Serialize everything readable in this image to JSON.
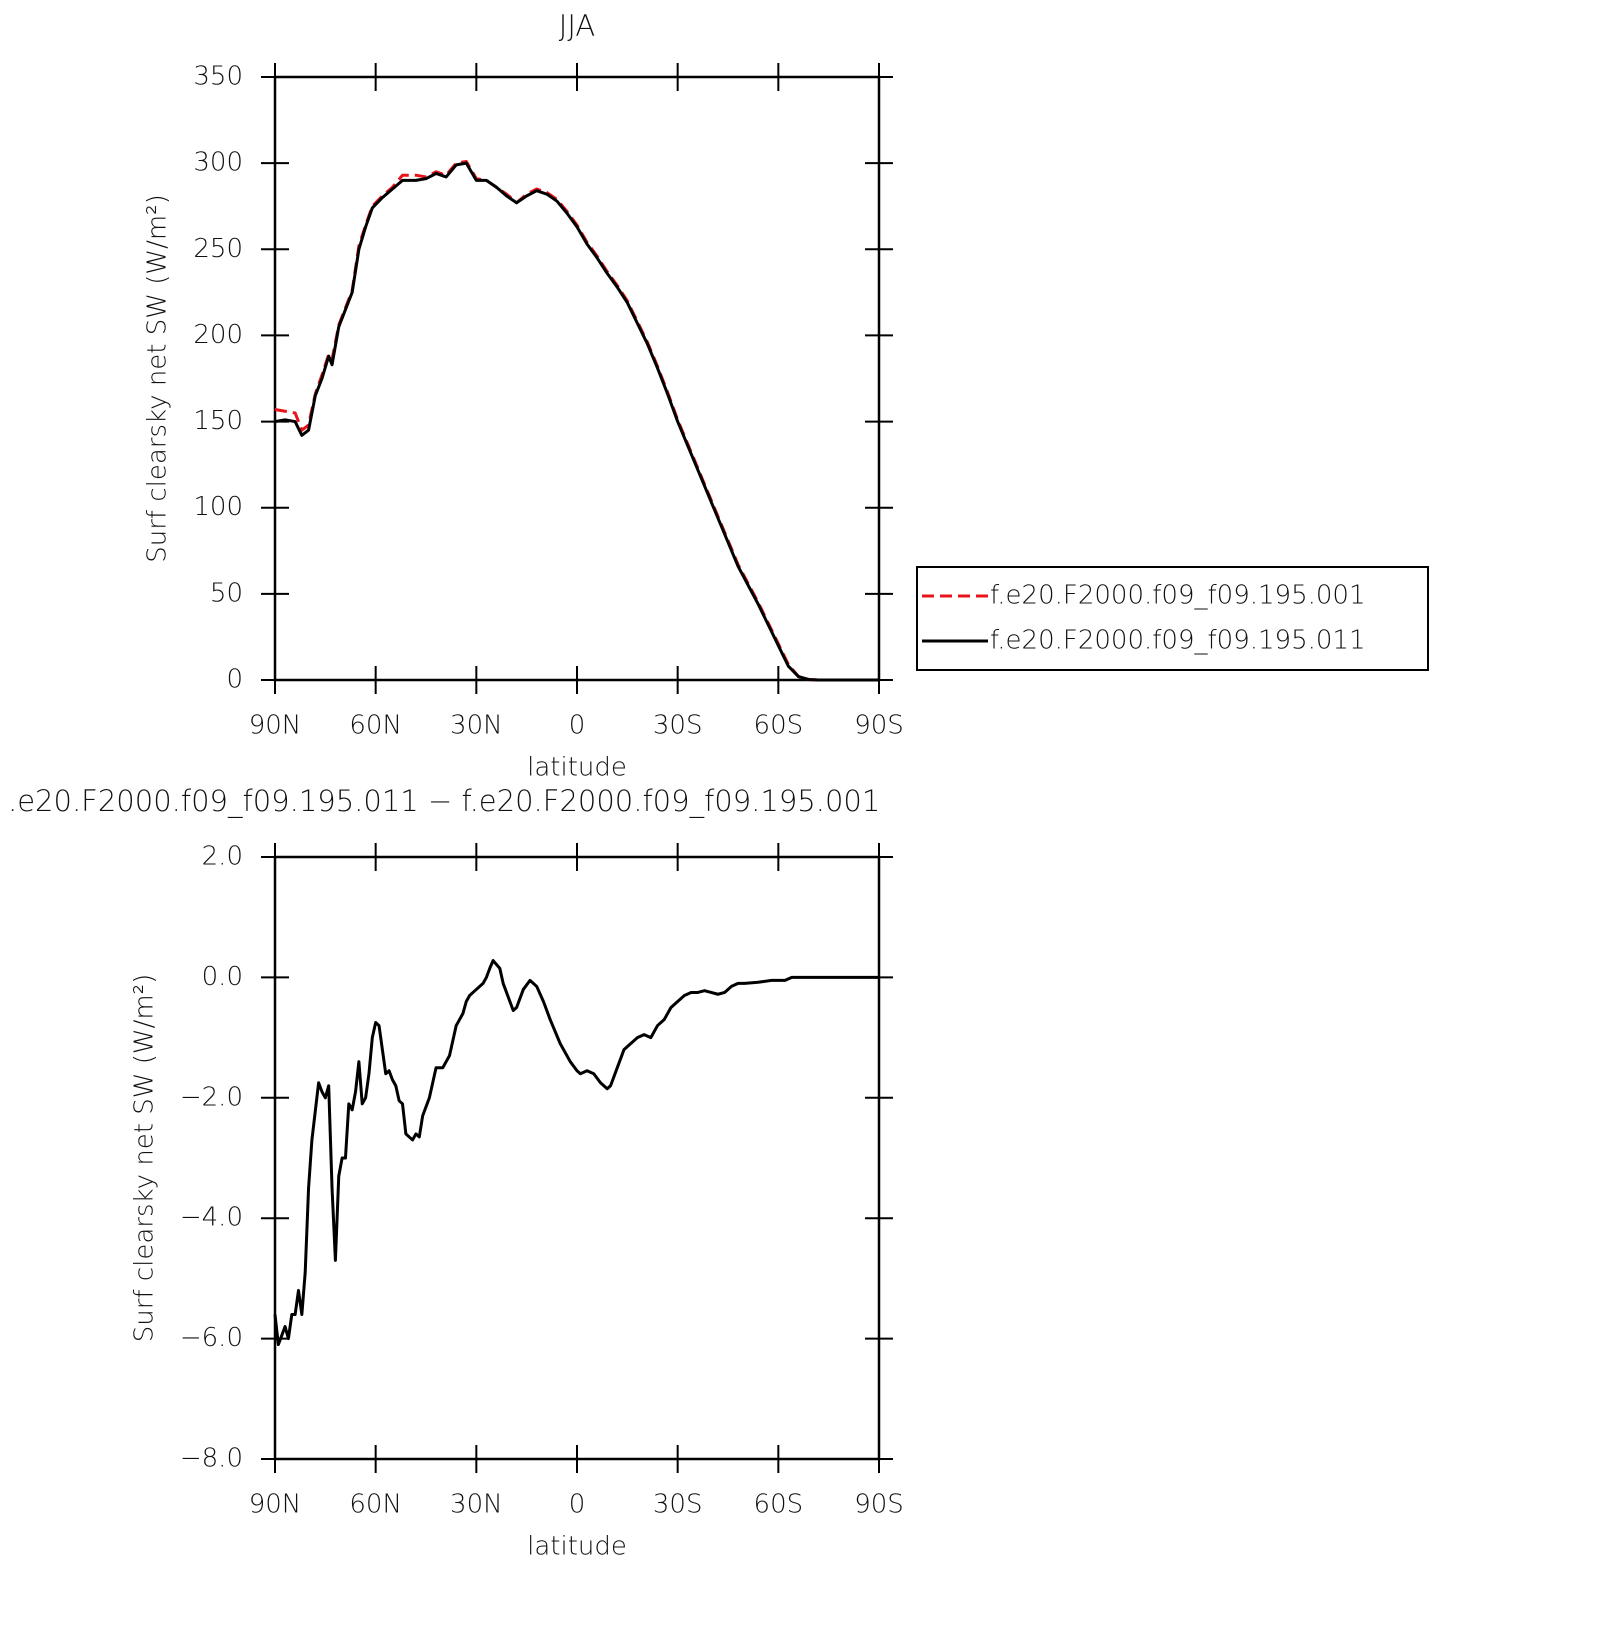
{
  "chart_data": [
    {
      "type": "line",
      "title": "JJA",
      "xlabel": "latitude",
      "ylabel": "Surf clearsky net SW (W/m²)",
      "xlim": [
        90,
        -90
      ],
      "xticks": [
        {
          "value": 90,
          "label": "90N"
        },
        {
          "value": 60,
          "label": "60N"
        },
        {
          "value": 30,
          "label": "30N"
        },
        0,
        {
          "value": -30,
          "label": "30S"
        },
        {
          "value": -60,
          "label": "60S"
        },
        {
          "value": -90,
          "label": "90S"
        }
      ],
      "ylim": [
        0,
        350
      ],
      "yticks": [
        0,
        50,
        100,
        150,
        200,
        250,
        300,
        350
      ],
      "legend": "right",
      "x": [
        90,
        87,
        84,
        82,
        80,
        78,
        76,
        74,
        73,
        71,
        69,
        67,
        65,
        63,
        61,
        58,
        55,
        52,
        48,
        45,
        42,
        39,
        36,
        33,
        30,
        27,
        24,
        21,
        18,
        15,
        12,
        9,
        6,
        3,
        0,
        -3,
        -6,
        -9,
        -12,
        -15,
        -18,
        -21,
        -24,
        -27,
        -30,
        -33,
        -36,
        -39,
        -42,
        -45,
        -48,
        -51,
        -54,
        -57,
        -60,
        -63,
        -66,
        -69,
        -72,
        -78,
        -84,
        -90
      ],
      "series": [
        {
          "name": "f.e20.F2000.f09_f09.195.001",
          "color": "#e8141a",
          "dash": true,
          "values": [
            157,
            156,
            155,
            145,
            148,
            166,
            177,
            189,
            186,
            206,
            216,
            226,
            252,
            264,
            275,
            281,
            286,
            293,
            293,
            292,
            295,
            293,
            300,
            301,
            291,
            290,
            286,
            282,
            277,
            282,
            285,
            283,
            279,
            272,
            264,
            254,
            246,
            237,
            229,
            220,
            208,
            196,
            182,
            167,
            151,
            137,
            123,
            109,
            95,
            81,
            67,
            56,
            45,
            33,
            21,
            9,
            2,
            0.3,
            0,
            0,
            0,
            0
          ]
        },
        {
          "name": "f.e20.F2000.f09_f09.195.011",
          "color": "#000000",
          "dash": false,
          "values": [
            150,
            151,
            150,
            142,
            145,
            165,
            175,
            188,
            183,
            205,
            215,
            225,
            250,
            263,
            274,
            280,
            285,
            290,
            290,
            291,
            294,
            292,
            299,
            300,
            290,
            290,
            286,
            281,
            277,
            281,
            284,
            282,
            278,
            271,
            263,
            253,
            245,
            236,
            228,
            219,
            207,
            195,
            181,
            166,
            150,
            136,
            122,
            108,
            94,
            80,
            66,
            55,
            44,
            32,
            20,
            8,
            2,
            0.3,
            0,
            0,
            0,
            0
          ]
        }
      ]
    },
    {
      "type": "line",
      "title": ".e20.F2000.f09_f09.195.011 − f.e20.F2000.f09_f09.195.001",
      "xlabel": "latitude",
      "ylabel": "Surf clearsky net SW (W/m²)",
      "xlim": [
        90,
        -90
      ],
      "xticks": [
        {
          "value": 90,
          "label": "90N"
        },
        {
          "value": 60,
          "label": "60N"
        },
        {
          "value": 30,
          "label": "30N"
        },
        0,
        {
          "value": -30,
          "label": "30S"
        },
        {
          "value": -60,
          "label": "60S"
        },
        {
          "value": -90,
          "label": "90S"
        }
      ],
      "ylim": [
        -8,
        2
      ],
      "yticks": [
        {
          "value": -8,
          "label": "−8.0"
        },
        {
          "value": -6,
          "label": "−6.0"
        },
        {
          "value": -4,
          "label": "−4.0"
        },
        {
          "value": -2,
          "label": "−2.0"
        },
        {
          "value": 0,
          "label": "0.0"
        },
        {
          "value": 2,
          "label": "2.0"
        }
      ],
      "x": [
        90,
        89,
        87,
        86,
        85,
        84,
        83,
        82,
        81,
        80,
        79,
        77,
        76,
        75,
        74,
        73,
        72,
        71,
        70,
        69,
        68,
        67,
        66,
        65,
        64,
        63,
        62,
        61,
        60,
        59,
        58,
        57,
        56,
        55,
        54,
        53,
        52,
        51,
        50,
        49,
        48,
        47,
        46,
        44,
        42,
        40,
        38,
        36,
        34,
        33,
        32,
        30,
        28,
        27,
        26,
        25,
        23,
        22,
        20,
        19,
        18,
        16,
        14,
        12,
        10,
        8,
        5,
        2,
        0,
        -1,
        -3,
        -5,
        -7,
        -9,
        -10,
        -12,
        -14,
        -16,
        -18,
        -20,
        -22,
        -24,
        -26,
        -28,
        -30,
        -32,
        -34,
        -36,
        -38,
        -40,
        -42,
        -44,
        -46,
        -48,
        -50,
        -54,
        -58,
        -62,
        -64,
        -68,
        -90
      ],
      "series": [
        {
          "color": "#000000",
          "dash": false,
          "values": [
            -5.6,
            -6.1,
            -5.8,
            -6.0,
            -5.6,
            -5.6,
            -5.2,
            -5.6,
            -4.9,
            -3.5,
            -2.7,
            -1.75,
            -1.9,
            -2.0,
            -1.8,
            -3.5,
            -4.7,
            -3.3,
            -3.0,
            -3.0,
            -2.1,
            -2.2,
            -1.9,
            -1.4,
            -2.1,
            -2.0,
            -1.6,
            -1.0,
            -0.75,
            -0.8,
            -1.2,
            -1.6,
            -1.55,
            -1.7,
            -1.8,
            -2.05,
            -2.1,
            -2.6,
            -2.65,
            -2.7,
            -2.6,
            -2.65,
            -2.3,
            -2.0,
            -1.5,
            -1.5,
            -1.3,
            -0.8,
            -0.6,
            -0.4,
            -0.3,
            -0.2,
            -0.1,
            0.0,
            0.15,
            0.28,
            0.15,
            -0.1,
            -0.4,
            -0.55,
            -0.5,
            -0.2,
            -0.05,
            -0.15,
            -0.4,
            -0.7,
            -1.1,
            -1.4,
            -1.55,
            -1.6,
            -1.55,
            -1.6,
            -1.75,
            -1.85,
            -1.8,
            -1.5,
            -1.2,
            -1.1,
            -1.0,
            -0.95,
            -1.0,
            -0.8,
            -0.7,
            -0.5,
            -0.4,
            -0.3,
            -0.25,
            -0.25,
            -0.22,
            -0.25,
            -0.28,
            -0.25,
            -0.15,
            -0.1,
            -0.1,
            -0.08,
            -0.05,
            -0.05,
            0,
            0,
            0
          ]
        }
      ]
    }
  ]
}
